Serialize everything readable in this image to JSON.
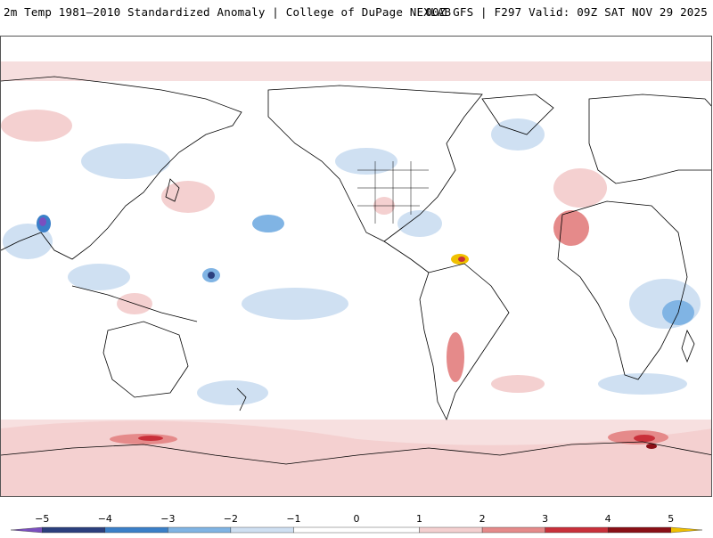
{
  "header": {
    "title_left": "2m Temp 1981–2010 Standardized Anomaly | College of DuPage NEXLAB",
    "title_right": "00Z GFS | F297 Valid: 09Z SAT NOV 29 2025"
  },
  "map": {
    "projection": "equirectangular, Pacific-centered",
    "background_color": "#ffffff",
    "coastline_color": "#000000"
  },
  "colorbar": {
    "ticks": [
      "−5",
      "−4",
      "−3",
      "−2",
      "−1",
      "0",
      "1",
      "2",
      "3",
      "4",
      "5"
    ],
    "tick_values": [
      -5,
      -4,
      -3,
      -2,
      -1,
      0,
      1,
      2,
      3,
      4,
      5
    ],
    "bins": [
      {
        "from": -5.5,
        "to": -5,
        "color": "#7b4fbf"
      },
      {
        "from": -5,
        "to": -4,
        "color": "#2b3f7e"
      },
      {
        "from": -4,
        "to": -3,
        "color": "#3a7fc8"
      },
      {
        "from": -3,
        "to": -2,
        "color": "#80b4e4"
      },
      {
        "from": -2,
        "to": -1,
        "color": "#cfe0f2"
      },
      {
        "from": -1,
        "to": 1,
        "color": "#ffffff"
      },
      {
        "from": 1,
        "to": 2,
        "color": "#f4d0d0"
      },
      {
        "from": 2,
        "to": 3,
        "color": "#e58a8a"
      },
      {
        "from": 3,
        "to": 4,
        "color": "#c9303a"
      },
      {
        "from": 4,
        "to": 5,
        "color": "#8a0f16"
      },
      {
        "from": 5,
        "to": 5.5,
        "color": "#f0c000"
      }
    ]
  }
}
